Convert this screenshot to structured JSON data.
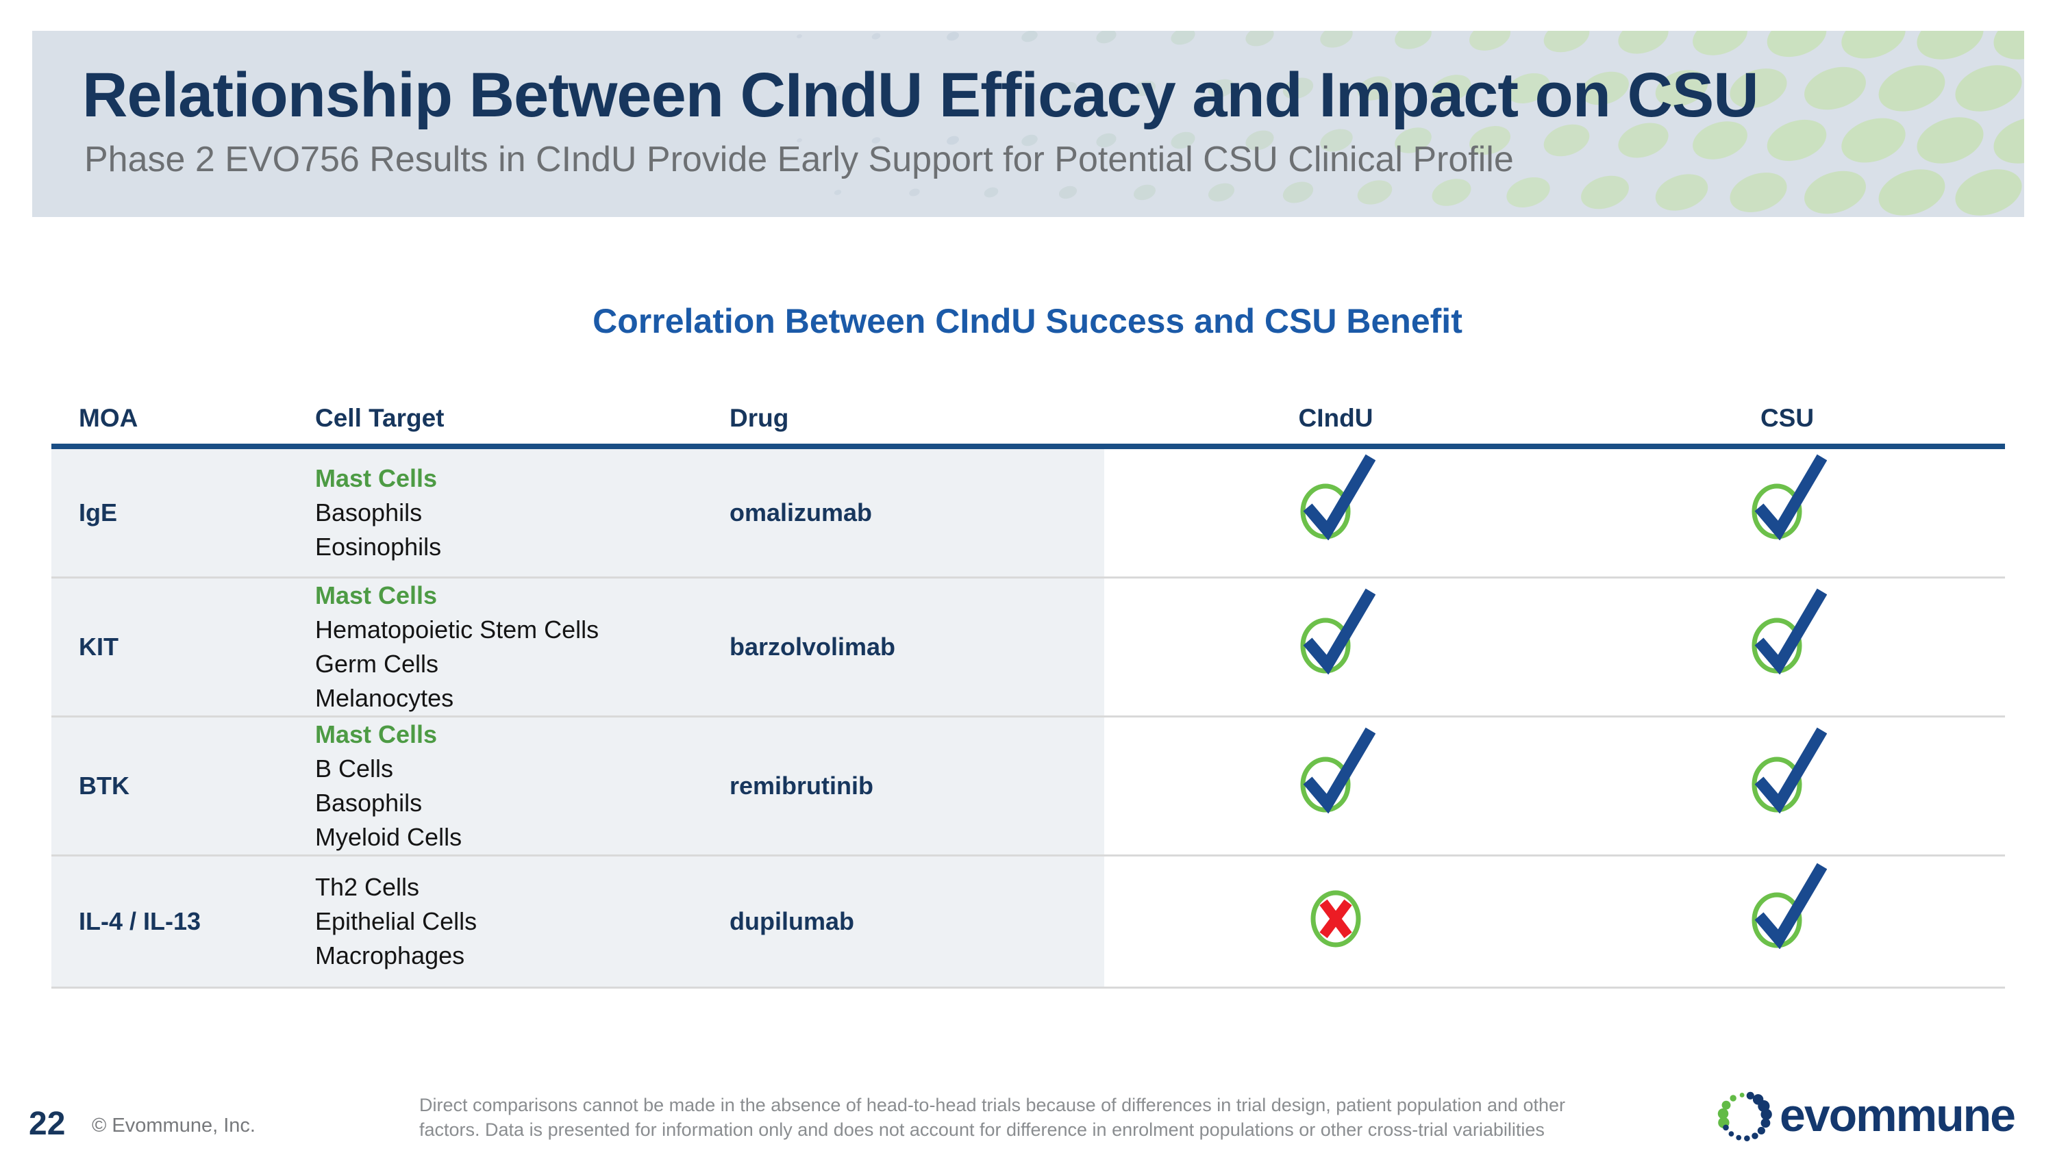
{
  "header": {
    "title": "Relationship Between CIndU Efficacy and Impact on CSU",
    "subtitle": "Phase 2 EVO756 Results in CIndU Provide Early Support for Potential CSU Clinical Profile"
  },
  "content": {
    "section_title": "Correlation Between CIndU Success and CSU Benefit"
  },
  "table": {
    "columns": [
      "MOA",
      "Cell Target",
      "Drug",
      "CIndU",
      "CSU"
    ],
    "rows": [
      {
        "moa": "IgE",
        "target_highlight": "Mast Cells",
        "targets": [
          "Basophils",
          "Eosinophils"
        ],
        "drug": "omalizumab",
        "cindu": "check",
        "csu": "check"
      },
      {
        "moa": "KIT",
        "target_highlight": "Mast Cells",
        "targets": [
          "Hematopoietic Stem Cells",
          "Germ Cells",
          "Melanocytes"
        ],
        "drug": "barzolvolimab",
        "cindu": "check",
        "csu": "check"
      },
      {
        "moa": "BTK",
        "target_highlight": "Mast Cells",
        "targets": [
          "B Cells",
          "Basophils",
          "Myeloid Cells"
        ],
        "drug": "remibrutinib",
        "cindu": "check",
        "csu": "check"
      },
      {
        "moa": "IL-4 / IL-13",
        "target_highlight": "",
        "targets": [
          "Th2 Cells",
          "Epithelial Cells",
          "Macrophages"
        ],
        "drug": "dupilumab",
        "cindu": "cross",
        "csu": "check"
      }
    ],
    "icon_legend": {
      "check": "circled-checkmark",
      "cross": "circled-x"
    }
  },
  "footer": {
    "page_number": "22",
    "copyright": "© Evommune, Inc.",
    "footnote_lines": [
      "Direct comparisons cannot be made in the absence of head-to-head trials because of differences in trial design, patient population and other",
      "factors.  Data is presented for information only and does not account for difference in enrolment populations or other cross-trial variabilities"
    ],
    "logo_text": "evommune"
  },
  "colors": {
    "navy": "#17365d",
    "section_title_blue": "#1b5aa8",
    "rule_blue": "#1a4e85",
    "green_text": "#4d9b44",
    "icon_green": "#6cc04a",
    "check_navy": "#1a4a8f",
    "cross_red": "#ec1c24",
    "band_bg": "#d9e0e8",
    "row_bg": "#eef1f4",
    "separator": "#d9d9d9",
    "subtitle_gray": "#6d7073",
    "copyright_gray": "#77797c",
    "footnote_gray": "#8a8d90",
    "logo_navy": "#14386e",
    "logo_green": "#62bb46",
    "pattern_blue": "#c3cfda",
    "pattern_green": "#cae0be"
  }
}
